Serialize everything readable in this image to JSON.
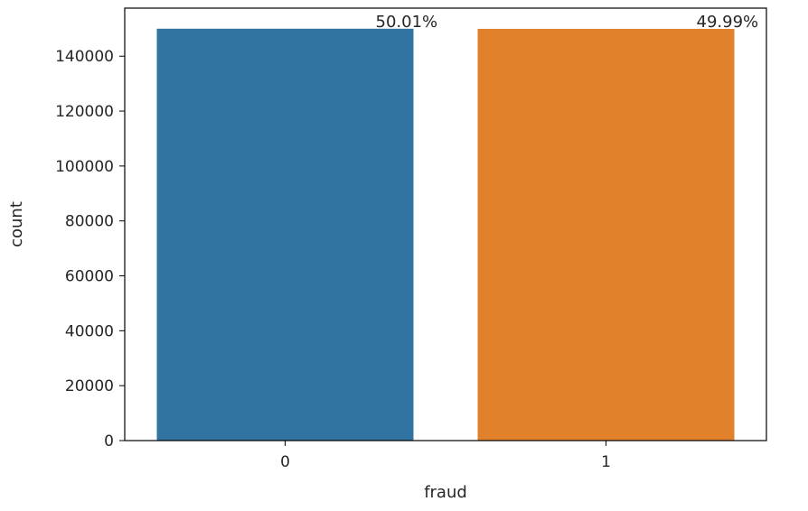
{
  "chart_data": {
    "type": "bar",
    "title": "",
    "xlabel": "fraud",
    "ylabel": "count",
    "categories": [
      "0",
      "1"
    ],
    "values": [
      150000,
      149950
    ],
    "colors": [
      "#3274a1",
      "#e1812c"
    ],
    "data_labels": [
      "50.01%",
      "49.99%"
    ],
    "ylim": [
      0,
      157500
    ],
    "yticks": [
      0,
      20000,
      40000,
      60000,
      80000,
      100000,
      120000,
      140000
    ],
    "ytick_labels": [
      "0",
      "20000",
      "40000",
      "60000",
      "80000",
      "100000",
      "120000",
      "140000"
    ],
    "grid": false,
    "legend": "none"
  }
}
